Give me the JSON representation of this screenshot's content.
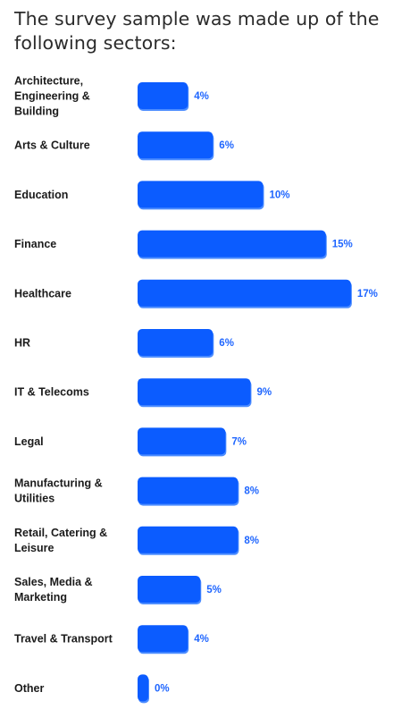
{
  "title": "The survey sample was made up of the following sectors:",
  "colors": {
    "bar": "#0b5cff",
    "bar_edge": "#4d8dff",
    "value_text": "#1f66ff",
    "label_text": "#1b1b1b"
  },
  "chart_data": {
    "type": "bar",
    "orientation": "horizontal",
    "title": "The survey sample was made up of the following sectors:",
    "xlabel": "",
    "ylabel": "",
    "grid": false,
    "legend": "none",
    "categories": [
      [
        "Architecture,",
        "Engineering &",
        "Building"
      ],
      [
        "Arts & Culture"
      ],
      [
        "Education"
      ],
      [
        "Finance"
      ],
      [
        "Healthcare"
      ],
      [
        "HR"
      ],
      [
        "IT & Telecoms"
      ],
      [
        "Legal"
      ],
      [
        "Manufacturing &",
        "Utilities"
      ],
      [
        "Retail, Catering &",
        "Leisure"
      ],
      [
        "Sales, Media &",
        "Marketing"
      ],
      [
        "Travel & Transport"
      ],
      [
        "Other"
      ]
    ],
    "values": [
      4,
      6,
      10,
      15,
      17,
      6,
      9,
      7,
      8,
      8,
      5,
      4,
      0
    ],
    "value_labels": [
      "4%",
      "6%",
      "10%",
      "15%",
      "17%",
      "6%",
      "9%",
      "7%",
      "8%",
      "8%",
      "5%",
      "4%",
      "0%"
    ]
  }
}
